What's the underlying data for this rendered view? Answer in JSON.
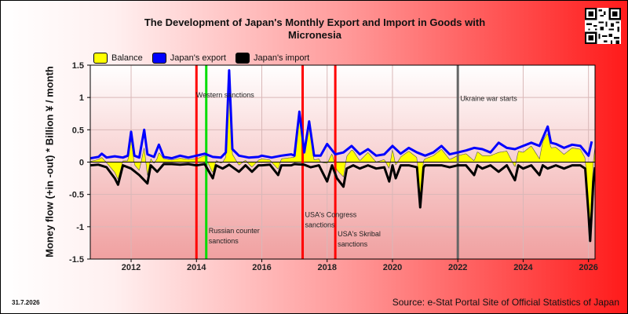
{
  "chart_data": {
    "type": "line",
    "title": "The Development of Japan's Monthly Export and Import in Goods with Micronesia",
    "ylabel": "Money flow (+in -out) * Billion ¥ / month",
    "xlabel": "",
    "ylim": [
      -1.5,
      1.5
    ],
    "xlim": [
      2010.75,
      2026.2
    ],
    "y_ticks": [
      1.5,
      1,
      0.5,
      0,
      -0.5,
      -1,
      -1.5
    ],
    "y_tick_labels": [
      "1.5",
      "1",
      "0.5",
      "0",
      "-0.5",
      "-1",
      "-1.5"
    ],
    "x_ticks": [
      2012,
      2014,
      2016,
      2018,
      2020,
      2022,
      2024,
      2026
    ],
    "x_tick_labels": [
      "2012",
      "2014",
      "2016",
      "2018",
      "2020",
      "2022",
      "2024",
      "2026"
    ],
    "grid": true,
    "legend_position": "top-left",
    "series": [
      {
        "name": "Balance",
        "color": "#ffff00",
        "style": "area"
      },
      {
        "name": "Japan's export",
        "color": "#0000ff",
        "style": "line",
        "points": [
          [
            2010.75,
            0.06
          ],
          [
            2011.0,
            0.08
          ],
          [
            2011.1,
            0.13
          ],
          [
            2011.25,
            0.07
          ],
          [
            2011.5,
            0.09
          ],
          [
            2011.75,
            0.07
          ],
          [
            2011.9,
            0.1
          ],
          [
            2012.0,
            0.47
          ],
          [
            2012.1,
            0.1
          ],
          [
            2012.25,
            0.07
          ],
          [
            2012.4,
            0.5
          ],
          [
            2012.5,
            0.12
          ],
          [
            2012.7,
            0.08
          ],
          [
            2012.85,
            0.27
          ],
          [
            2013.0,
            0.08
          ],
          [
            2013.25,
            0.06
          ],
          [
            2013.5,
            0.1
          ],
          [
            2013.75,
            0.07
          ],
          [
            2014.0,
            0.1
          ],
          [
            2014.25,
            0.13
          ],
          [
            2014.5,
            0.08
          ],
          [
            2014.75,
            0.07
          ],
          [
            2014.9,
            0.15
          ],
          [
            2015.0,
            1.42
          ],
          [
            2015.1,
            0.2
          ],
          [
            2015.3,
            0.1
          ],
          [
            2015.6,
            0.07
          ],
          [
            2015.9,
            0.08
          ],
          [
            2016.0,
            0.1
          ],
          [
            2016.3,
            0.07
          ],
          [
            2016.6,
            0.1
          ],
          [
            2016.9,
            0.12
          ],
          [
            2017.0,
            0.1
          ],
          [
            2017.15,
            0.78
          ],
          [
            2017.3,
            0.15
          ],
          [
            2017.45,
            0.63
          ],
          [
            2017.6,
            0.1
          ],
          [
            2017.8,
            0.1
          ],
          [
            2018.0,
            0.28
          ],
          [
            2018.25,
            0.12
          ],
          [
            2018.5,
            0.15
          ],
          [
            2018.75,
            0.25
          ],
          [
            2019.0,
            0.12
          ],
          [
            2019.25,
            0.2
          ],
          [
            2019.5,
            0.1
          ],
          [
            2019.75,
            0.12
          ],
          [
            2020.0,
            0.25
          ],
          [
            2020.25,
            0.13
          ],
          [
            2020.5,
            0.22
          ],
          [
            2020.75,
            0.15
          ],
          [
            2021.0,
            0.1
          ],
          [
            2021.25,
            0.15
          ],
          [
            2021.5,
            0.25
          ],
          [
            2021.75,
            0.12
          ],
          [
            2022.0,
            0.15
          ],
          [
            2022.25,
            0.18
          ],
          [
            2022.5,
            0.22
          ],
          [
            2022.75,
            0.2
          ],
          [
            2023.0,
            0.15
          ],
          [
            2023.25,
            0.3
          ],
          [
            2023.5,
            0.22
          ],
          [
            2023.75,
            0.2
          ],
          [
            2024.0,
            0.25
          ],
          [
            2024.25,
            0.3
          ],
          [
            2024.5,
            0.25
          ],
          [
            2024.75,
            0.55
          ],
          [
            2024.85,
            0.3
          ],
          [
            2025.0,
            0.28
          ],
          [
            2025.25,
            0.22
          ],
          [
            2025.5,
            0.27
          ],
          [
            2025.75,
            0.25
          ],
          [
            2026.0,
            0.1
          ],
          [
            2026.1,
            0.32
          ]
        ]
      },
      {
        "name": "Japan's import",
        "color": "#000000",
        "style": "line",
        "points": [
          [
            2010.75,
            -0.05
          ],
          [
            2011.0,
            -0.04
          ],
          [
            2011.25,
            -0.08
          ],
          [
            2011.5,
            -0.25
          ],
          [
            2011.6,
            -0.35
          ],
          [
            2011.75,
            -0.05
          ],
          [
            2012.0,
            -0.1
          ],
          [
            2012.25,
            -0.2
          ],
          [
            2012.5,
            -0.33
          ],
          [
            2012.6,
            -0.05
          ],
          [
            2012.8,
            -0.15
          ],
          [
            2013.0,
            -0.03
          ],
          [
            2013.25,
            -0.03
          ],
          [
            2013.5,
            -0.04
          ],
          [
            2013.75,
            -0.03
          ],
          [
            2014.0,
            -0.05
          ],
          [
            2014.25,
            -0.03
          ],
          [
            2014.5,
            -0.25
          ],
          [
            2014.6,
            -0.05
          ],
          [
            2014.8,
            -0.1
          ],
          [
            2015.0,
            -0.04
          ],
          [
            2015.3,
            -0.15
          ],
          [
            2015.5,
            -0.05
          ],
          [
            2015.7,
            -0.15
          ],
          [
            2015.9,
            -0.05
          ],
          [
            2016.0,
            -0.05
          ],
          [
            2016.25,
            -0.04
          ],
          [
            2016.5,
            -0.2
          ],
          [
            2016.6,
            -0.05
          ],
          [
            2016.9,
            -0.05
          ],
          [
            2017.0,
            -0.03
          ],
          [
            2017.3,
            -0.04
          ],
          [
            2017.5,
            -0.08
          ],
          [
            2017.75,
            -0.05
          ],
          [
            2018.0,
            -0.3
          ],
          [
            2018.15,
            -0.05
          ],
          [
            2018.3,
            -0.25
          ],
          [
            2018.5,
            -0.38
          ],
          [
            2018.6,
            -0.1
          ],
          [
            2018.8,
            -0.05
          ],
          [
            2019.0,
            -0.1
          ],
          [
            2019.25,
            -0.05
          ],
          [
            2019.5,
            -0.1
          ],
          [
            2019.75,
            -0.08
          ],
          [
            2019.9,
            -0.3
          ],
          [
            2020.0,
            -0.05
          ],
          [
            2020.1,
            -0.25
          ],
          [
            2020.25,
            -0.05
          ],
          [
            2020.5,
            -0.05
          ],
          [
            2020.75,
            -0.08
          ],
          [
            2020.85,
            -0.7
          ],
          [
            2020.95,
            -0.08
          ],
          [
            2021.0,
            -0.05
          ],
          [
            2021.25,
            -0.05
          ],
          [
            2021.5,
            -0.05
          ],
          [
            2021.75,
            -0.08
          ],
          [
            2022.0,
            -0.05
          ],
          [
            2022.25,
            -0.05
          ],
          [
            2022.5,
            -0.2
          ],
          [
            2022.6,
            -0.05
          ],
          [
            2022.75,
            -0.1
          ],
          [
            2023.0,
            -0.05
          ],
          [
            2023.25,
            -0.15
          ],
          [
            2023.5,
            -0.05
          ],
          [
            2023.75,
            -0.28
          ],
          [
            2023.85,
            -0.05
          ],
          [
            2024.0,
            -0.1
          ],
          [
            2024.25,
            -0.05
          ],
          [
            2024.5,
            -0.2
          ],
          [
            2024.6,
            -0.05
          ],
          [
            2024.75,
            -0.1
          ],
          [
            2025.0,
            -0.05
          ],
          [
            2025.25,
            -0.1
          ],
          [
            2025.5,
            -0.05
          ],
          [
            2025.75,
            -0.05
          ],
          [
            2025.9,
            -0.1
          ],
          [
            2026.0,
            -0.8
          ],
          [
            2026.05,
            -1.22
          ],
          [
            2026.15,
            -0.3
          ],
          [
            2026.2,
            -0.08
          ]
        ]
      }
    ],
    "annotations": [
      {
        "year": 2014.0,
        "color": "#ff0000",
        "label": "",
        "label_y": null
      },
      {
        "year": 2014.3,
        "color": "#00dd00",
        "label": "Russian counter sanctions",
        "label_y": -1.1
      },
      {
        "year": 2015.0,
        "color": "",
        "label": "Western sanctions",
        "label_y": 1.0
      },
      {
        "year": 2017.25,
        "color": "#ff0000",
        "label": "USA's Congress sanctions",
        "label_y": -0.85
      },
      {
        "year": 2018.25,
        "color": "#ff0000",
        "label": "USA's Skribal sanctions",
        "label_y": -1.15
      },
      {
        "year": 2022.0,
        "color": "#666666",
        "label": "Ukraine war starts",
        "label_y": 0.95
      }
    ]
  },
  "date_stamp": "31.7.2026",
  "source_note": "Source: e-Stat Portal Site of Official Statistics of Japan"
}
